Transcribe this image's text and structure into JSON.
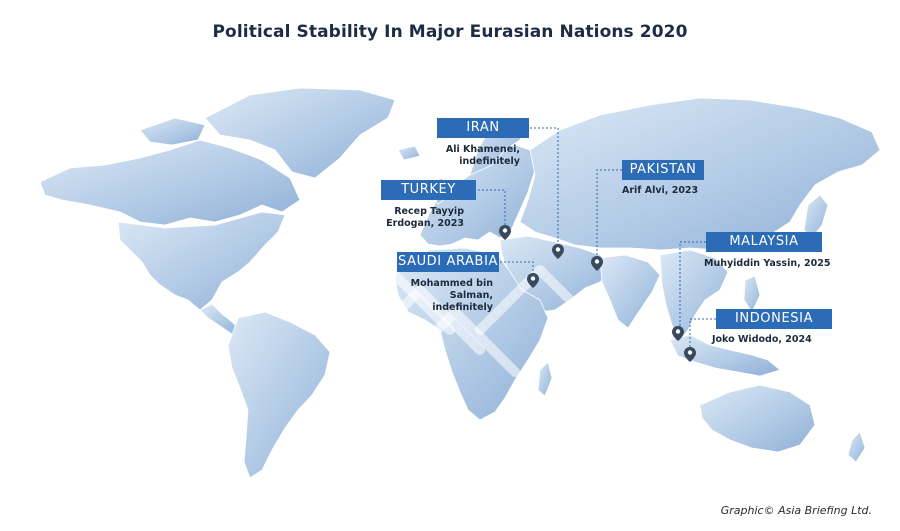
{
  "title": "Political Stability In Major Eurasian Nations 2020",
  "credit": "Graphic© Asia Briefing Ltd.",
  "colors": {
    "tag_bg": "#2c6bb5",
    "land_light": "#d7e6f4",
    "land_dark": "#8eb0d6",
    "pin": "#3a4a5e"
  },
  "countries": [
    {
      "name": "IRAN",
      "leader": "Ali Khamenei, indefinitely"
    },
    {
      "name": "TURKEY",
      "leader": "Recep Tayyip Erdogan, 2023"
    },
    {
      "name": "SAUDI ARABIA",
      "leader": "Mohammed bin Salman, indefinitely"
    },
    {
      "name": "PAKISTAN",
      "leader": "Arif Alvi, 2023"
    },
    {
      "name": "MALAYSIA",
      "leader": "Muhyiddin Yassin, 2025"
    },
    {
      "name": "INDONESIA",
      "leader": "Joko Widodo, 2024"
    }
  ]
}
